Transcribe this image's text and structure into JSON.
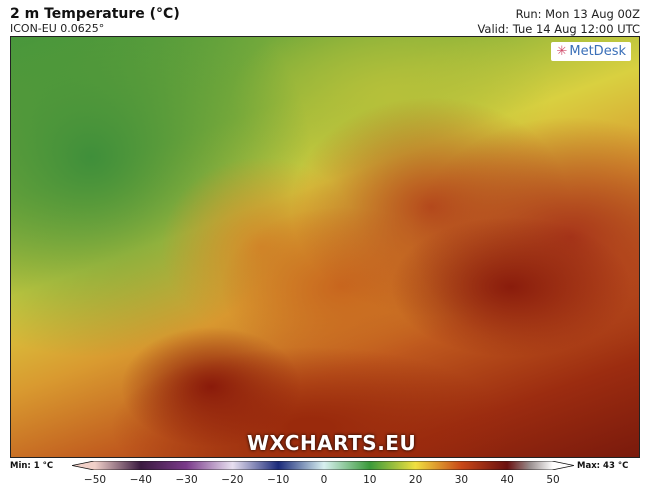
{
  "header": {
    "title": "2 m Temperature (°C)",
    "model": "ICON-EU 0.0625°",
    "run": "Run: Mon 13 Aug 00Z",
    "valid": "Valid: Tue 14 Aug 12:00 UTC"
  },
  "map": {
    "logo": "MetDesk",
    "watermark": "WXCHARTS.EU",
    "region": "Europe"
  },
  "colorbar": {
    "min_label": "Min: 1 °C",
    "max_label": "Max: 43 °C",
    "ticks": [
      "−50",
      "−40",
      "−30",
      "−20",
      "−10",
      "0",
      "10",
      "20",
      "30",
      "40",
      "50"
    ],
    "range": [
      -50,
      50
    ],
    "colors": {
      "-50": "#f0d0c8",
      "-40": "#3a1a40",
      "-30": "#7a3a8a",
      "-20": "#e8e0f0",
      "-10": "#1a2a7a",
      "0": "#d8f0f0",
      "10": "#3a9a3a",
      "20": "#f0e040",
      "30": "#c84818",
      "40": "#6a1010",
      "45": "#9a9090",
      "50": "#ffffff"
    }
  }
}
